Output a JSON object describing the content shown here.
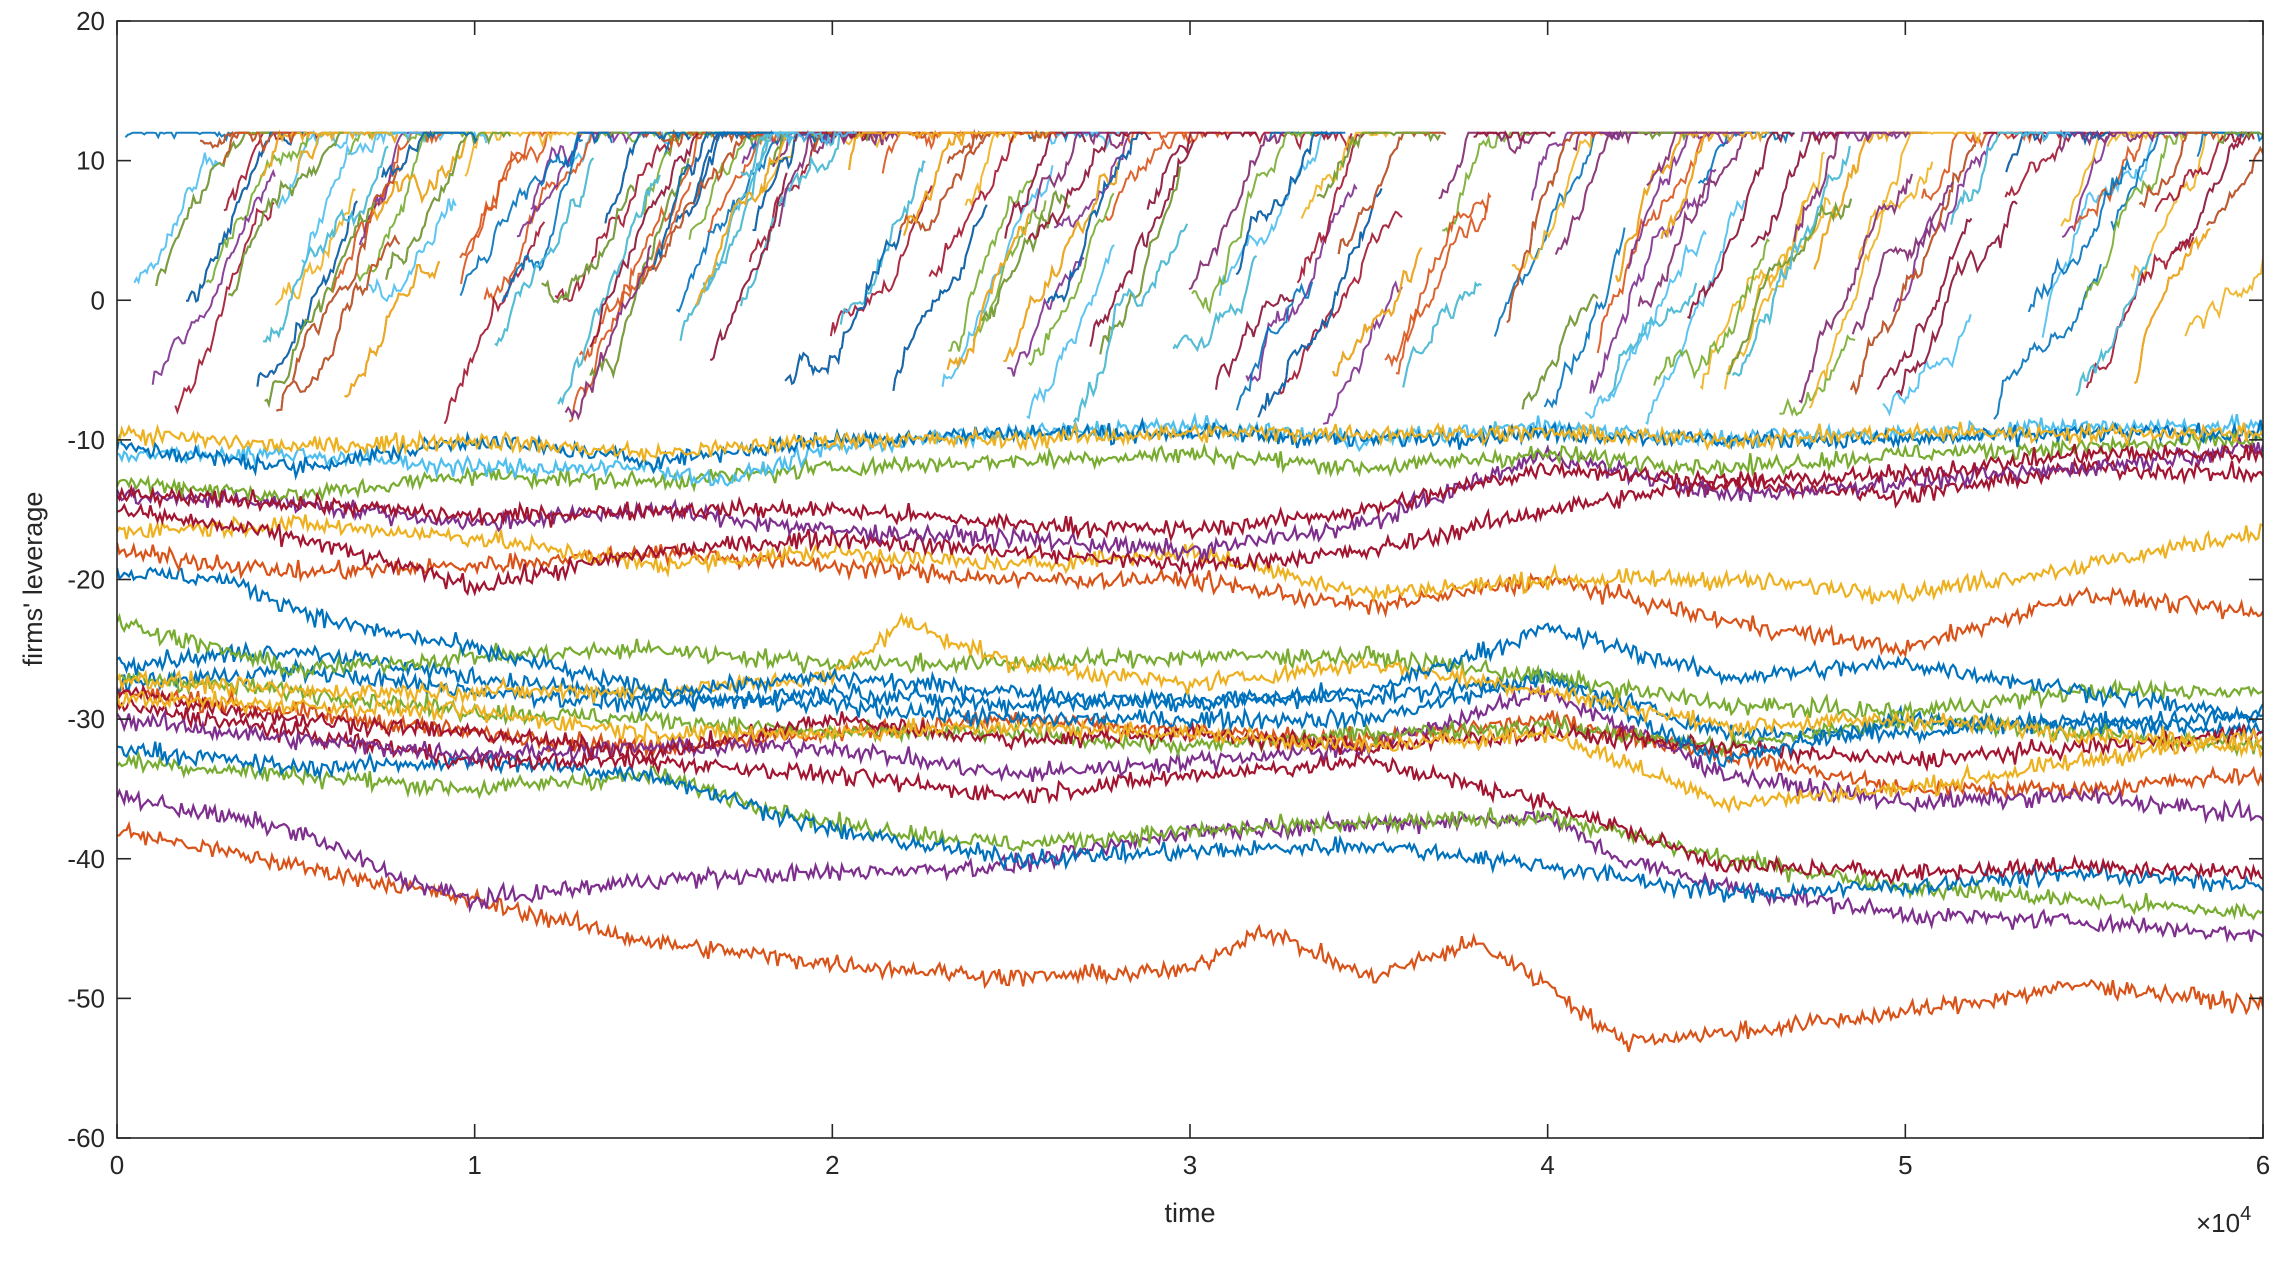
{
  "chart_data": {
    "type": "line",
    "xlabel": "time",
    "ylabel": "firms' leverage",
    "x_exponent_label": "×10",
    "x_exponent_power": "4",
    "xlim": [
      0,
      60000
    ],
    "ylim": [
      -60,
      20
    ],
    "x_tick_labels": [
      "0",
      "1",
      "2",
      "3",
      "4",
      "5",
      "6"
    ],
    "x_tick_values": [
      0,
      10000,
      20000,
      30000,
      40000,
      50000,
      60000
    ],
    "y_tick_labels": [
      "20",
      "10",
      "0",
      "-10",
      "-20",
      "-30",
      "-40",
      "-50",
      "-60"
    ],
    "y_tick_values": [
      20,
      10,
      0,
      -10,
      -20,
      -30,
      -40,
      -50,
      -60
    ],
    "grid": false,
    "legend": "none",
    "colors": [
      "#0072BD",
      "#D95319",
      "#EDB120",
      "#7E2F8E",
      "#77AC30",
      "#4DBEEE",
      "#A2142F"
    ],
    "dense_band": {
      "description_value_range": [
        -9,
        12
      ],
      "cap": 12,
      "trajectory_count": 300
    },
    "series": [
      {
        "color": "#D95319",
        "x": [
          0,
          5000,
          10000,
          15000,
          20000,
          25000,
          30000,
          32000,
          35000,
          38000,
          40000,
          42000,
          45000,
          50000,
          55000,
          60000
        ],
        "y": [
          -38,
          -40.5,
          -43,
          -46,
          -47.5,
          -48.5,
          -48,
          -45,
          -48.5,
          -46,
          -49,
          -53,
          -52.5,
          -51,
          -49,
          -50.5
        ]
      },
      {
        "color": "#7E2F8E",
        "x": [
          0,
          5000,
          8000,
          10000,
          15000,
          20000,
          25000,
          30000,
          35000,
          40000,
          42000,
          45000,
          50000,
          55000,
          60000
        ],
        "y": [
          -35.5,
          -38,
          -41.5,
          -43,
          -41.5,
          -41,
          -40.5,
          -38,
          -37.5,
          -37,
          -40,
          -42,
          -44,
          -44.5,
          -45.5
        ]
      },
      {
        "color": "#77AC30",
        "x": [
          0,
          5000,
          10000,
          15000,
          20000,
          25000,
          30000,
          35000,
          40000,
          45000,
          50000,
          55000,
          60000
        ],
        "y": [
          -33,
          -34,
          -35,
          -34,
          -37.5,
          -39,
          -38,
          -37.5,
          -37,
          -40,
          -42,
          -43,
          -44
        ]
      },
      {
        "color": "#0072BD",
        "x": [
          0,
          5000,
          10000,
          15000,
          20000,
          25000,
          30000,
          35000,
          40000,
          45000,
          50000,
          55000,
          60000
        ],
        "y": [
          -32,
          -33.5,
          -33,
          -34,
          -38,
          -40,
          -39.5,
          -39,
          -40.5,
          -42.5,
          -42,
          -41,
          -42
        ]
      },
      {
        "color": "#A2142F",
        "x": [
          0,
          5000,
          10000,
          15000,
          20000,
          25000,
          30000,
          35000,
          40000,
          45000,
          50000,
          55000,
          60000
        ],
        "y": [
          -29,
          -31,
          -33,
          -33,
          -34,
          -35.5,
          -34,
          -33,
          -36,
          -40.5,
          -41,
          -40.5,
          -41
        ]
      },
      {
        "color": "#D95319",
        "x": [
          0,
          5000,
          10000,
          15000,
          20000,
          25000,
          30000,
          35000,
          40000,
          45000,
          50000,
          55000,
          60000
        ],
        "y": [
          -28,
          -29.5,
          -31,
          -32,
          -31,
          -30,
          -31,
          -31.5,
          -30,
          -32.5,
          -35,
          -35,
          -34
        ]
      },
      {
        "color": "#7E2F8E",
        "x": [
          0,
          5000,
          10000,
          15000,
          20000,
          25000,
          30000,
          35000,
          40000,
          45000,
          50000,
          55000,
          60000
        ],
        "y": [
          -30,
          -31.5,
          -32.5,
          -32,
          -32,
          -34,
          -33,
          -32,
          -28,
          -34,
          -36,
          -35.5,
          -37
        ]
      },
      {
        "color": "#0072BD",
        "x": [
          0,
          5000,
          10000,
          15000,
          20000,
          25000,
          30000,
          35000,
          40000,
          45000,
          50000,
          55000,
          60000
        ],
        "y": [
          -27.5,
          -26.5,
          -28,
          -29,
          -28,
          -29,
          -28.5,
          -28.5,
          -27,
          -31,
          -31,
          -30,
          -31
        ]
      },
      {
        "color": "#77AC30",
        "x": [
          0,
          5000,
          10000,
          15000,
          20000,
          25000,
          30000,
          35000,
          40000,
          45000,
          50000,
          55000,
          60000
        ],
        "y": [
          -27,
          -28,
          -29.5,
          -30,
          -31,
          -31,
          -32,
          -31,
          -30.5,
          -32,
          -30,
          -31,
          -32
        ]
      },
      {
        "color": "#A2142F",
        "x": [
          0,
          5000,
          10000,
          15000,
          20000,
          25000,
          30000,
          35000,
          40000,
          45000,
          50000,
          55000,
          60000
        ],
        "y": [
          -28,
          -30,
          -31,
          -32.5,
          -30,
          -31.5,
          -31,
          -32,
          -31,
          -32,
          -33,
          -32,
          -31
        ]
      },
      {
        "color": "#EDB120",
        "x": [
          0,
          5000,
          10000,
          15000,
          20000,
          25000,
          30000,
          35000,
          40000,
          45000,
          50000,
          55000,
          60000
        ],
        "y": [
          -28.5,
          -29,
          -29.5,
          -31,
          -31,
          -30.5,
          -31,
          -32,
          -31,
          -36,
          -35,
          -33,
          -31
        ]
      },
      {
        "color": "#0072BD",
        "x": [
          0,
          5000,
          10000,
          15000,
          20000,
          25000,
          30000,
          35000,
          40000,
          45000,
          50000,
          55000,
          60000
        ],
        "y": [
          -26,
          -25,
          -27,
          -28.5,
          -29,
          -30,
          -30,
          -30,
          -27,
          -33,
          -30,
          -30.5,
          -29.5
        ]
      },
      {
        "color": "#77AC30",
        "x": [
          0,
          5000,
          10000,
          15000,
          20000,
          25000,
          30000,
          35000,
          40000,
          45000,
          50000,
          55000,
          60000
        ],
        "y": [
          -23,
          -26.5,
          -25.5,
          -25,
          -26,
          -26,
          -25.5,
          -25.5,
          -27,
          -29,
          -29.5,
          -28,
          -28
        ]
      },
      {
        "color": "#EDB120",
        "x": [
          0,
          5000,
          10000,
          15000,
          20000,
          22000,
          25000,
          30000,
          35000,
          40000,
          45000,
          50000,
          55000,
          60000
        ],
        "y": [
          -27,
          -28,
          -28,
          -28,
          -27,
          -23,
          -26,
          -27.5,
          -26,
          -28,
          -30.5,
          -30,
          -31,
          -32
        ]
      },
      {
        "color": "#0072BD",
        "x": [
          0,
          3000,
          6000,
          10000,
          15000,
          20000,
          25000,
          30000,
          35000,
          40000,
          45000,
          50000,
          55000,
          60000
        ],
        "y": [
          -19.5,
          -20,
          -23,
          -25,
          -28,
          -27,
          -28,
          -29,
          -28,
          -23.5,
          -27,
          -26,
          -28,
          -30
        ]
      },
      {
        "color": "#D95319",
        "x": [
          0,
          5000,
          10000,
          15000,
          20000,
          25000,
          30000,
          35000,
          40000,
          45000,
          50000,
          55000,
          60000
        ],
        "y": [
          -18,
          -19.5,
          -19,
          -18,
          -19,
          -20,
          -20,
          -22,
          -20,
          -23,
          -25,
          -21,
          -22.5
        ]
      },
      {
        "color": "#EDB120",
        "x": [
          0,
          5000,
          10000,
          15000,
          20000,
          25000,
          30000,
          35000,
          40000,
          45000,
          50000,
          55000,
          60000
        ],
        "y": [
          -16.5,
          -16,
          -17,
          -19,
          -18,
          -19,
          -18,
          -21,
          -20,
          -20,
          -21,
          -19,
          -16.5
        ]
      },
      {
        "color": "#A2142F",
        "x": [
          0,
          5000,
          10000,
          15000,
          20000,
          25000,
          30000,
          35000,
          40000,
          45000,
          50000,
          55000,
          60000
        ],
        "y": [
          -15,
          -17,
          -20.5,
          -18,
          -17,
          -18,
          -19,
          -18,
          -15,
          -13,
          -14,
          -12,
          -12.5
        ]
      },
      {
        "color": "#7E2F8E",
        "x": [
          0,
          5000,
          10000,
          15000,
          20000,
          25000,
          30000,
          35000,
          40000,
          45000,
          50000,
          55000,
          60000
        ],
        "y": [
          -14,
          -14.5,
          -16,
          -15,
          -16.5,
          -17,
          -18,
          -16,
          -11,
          -14,
          -13,
          -12,
          -10.5
        ]
      },
      {
        "color": "#77AC30",
        "x": [
          0,
          5000,
          10000,
          15000,
          20000,
          25000,
          30000,
          35000,
          40000,
          45000,
          50000,
          55000,
          60000
        ],
        "y": [
          -13,
          -14,
          -12.5,
          -13,
          -12,
          -11.5,
          -11,
          -12,
          -11,
          -12,
          -11,
          -10.5,
          -10
        ]
      },
      {
        "color": "#A2142F",
        "x": [
          0,
          5000,
          10000,
          15000,
          20000,
          25000,
          30000,
          35000,
          40000,
          45000,
          50000,
          55000,
          60000
        ],
        "y": [
          -14,
          -14.5,
          -15.5,
          -15,
          -15,
          -16,
          -16.5,
          -15,
          -12,
          -13,
          -12.5,
          -11,
          -11
        ]
      },
      {
        "color": "#4DBEEE",
        "x": [
          0,
          5000,
          10000,
          15000,
          17000,
          20000,
          25000,
          30000,
          35000,
          40000,
          45000,
          50000,
          55000,
          60000
        ],
        "y": [
          -11,
          -11,
          -12,
          -12,
          -13,
          -10.5,
          -9.5,
          -9,
          -10,
          -9,
          -10,
          -9.5,
          -9,
          -9
        ]
      },
      {
        "color": "#0072BD",
        "x": [
          0,
          5000,
          10000,
          15000,
          20000,
          25000,
          30000,
          35000,
          40000,
          45000,
          50000,
          55000,
          60000
        ],
        "y": [
          -10.5,
          -12,
          -10,
          -11.5,
          -10,
          -9.5,
          -9.5,
          -10,
          -9.5,
          -10,
          -10,
          -9.5,
          -9.5
        ]
      },
      {
        "color": "#EDB120",
        "x": [
          0,
          5000,
          10000,
          15000,
          20000,
          25000,
          30000,
          35000,
          40000,
          45000,
          50000,
          55000,
          60000
        ],
        "y": [
          -9.5,
          -10.5,
          -10,
          -11,
          -10,
          -10,
          -9.5,
          -9.5,
          -9.5,
          -10,
          -9.5,
          -9.5,
          -9.5
        ]
      }
    ]
  }
}
